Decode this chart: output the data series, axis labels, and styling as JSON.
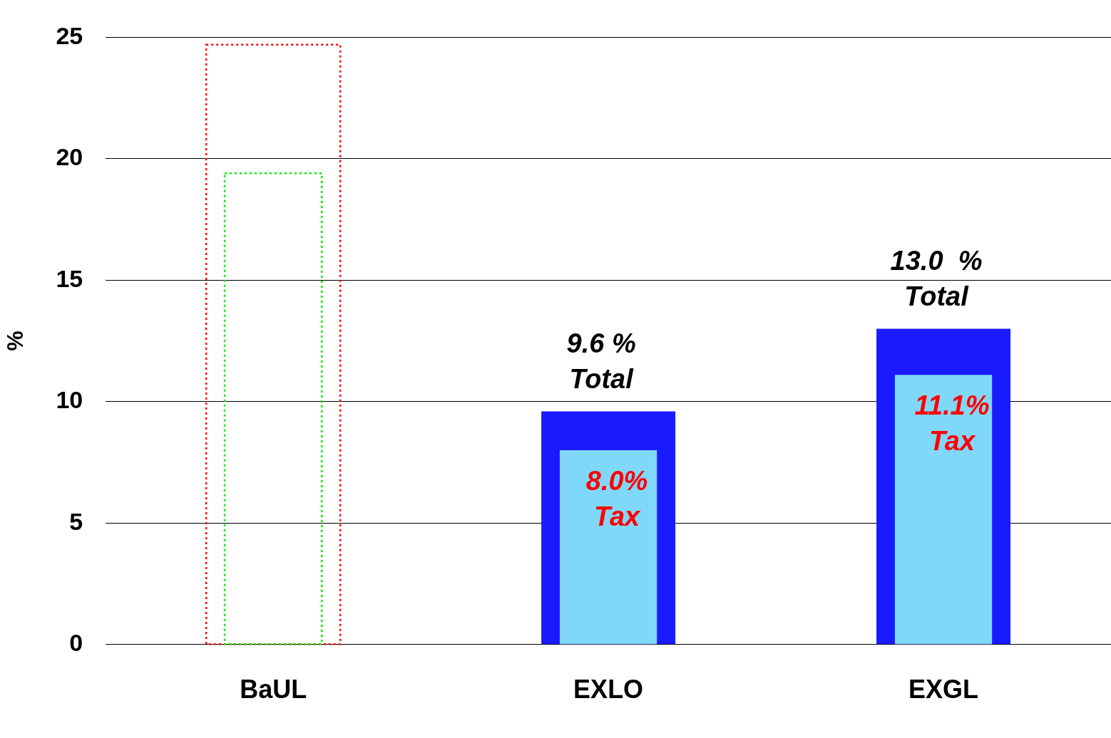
{
  "chart_data": {
    "type": "bar",
    "ylabel": "%",
    "categories": [
      "BaUL",
      "EXLO",
      "EXGL"
    ],
    "series": [
      {
        "name": "Total",
        "color": "#1a1aff",
        "values": [
          null,
          9.6,
          13.0
        ],
        "value_labels": [
          null,
          "9.6 %",
          "13.0  %"
        ]
      },
      {
        "name": "Tax",
        "color": "#80d8f8",
        "values": [
          null,
          8.0,
          11.1
        ],
        "value_labels": [
          null,
          "8.0%",
          "11.1%"
        ]
      },
      {
        "color": "#ff0000",
        "values": [
          24.7,
          null,
          null
        ],
        "line_style": "dotted"
      },
      {
        "color": "#00ee00",
        "values": [
          19.4,
          null,
          null
        ],
        "line_style": "dotted"
      }
    ],
    "ylim": [
      0,
      25
    ],
    "yticks": [
      0,
      5,
      10,
      15,
      20,
      25
    ],
    "grid": "y",
    "legend": false
  }
}
